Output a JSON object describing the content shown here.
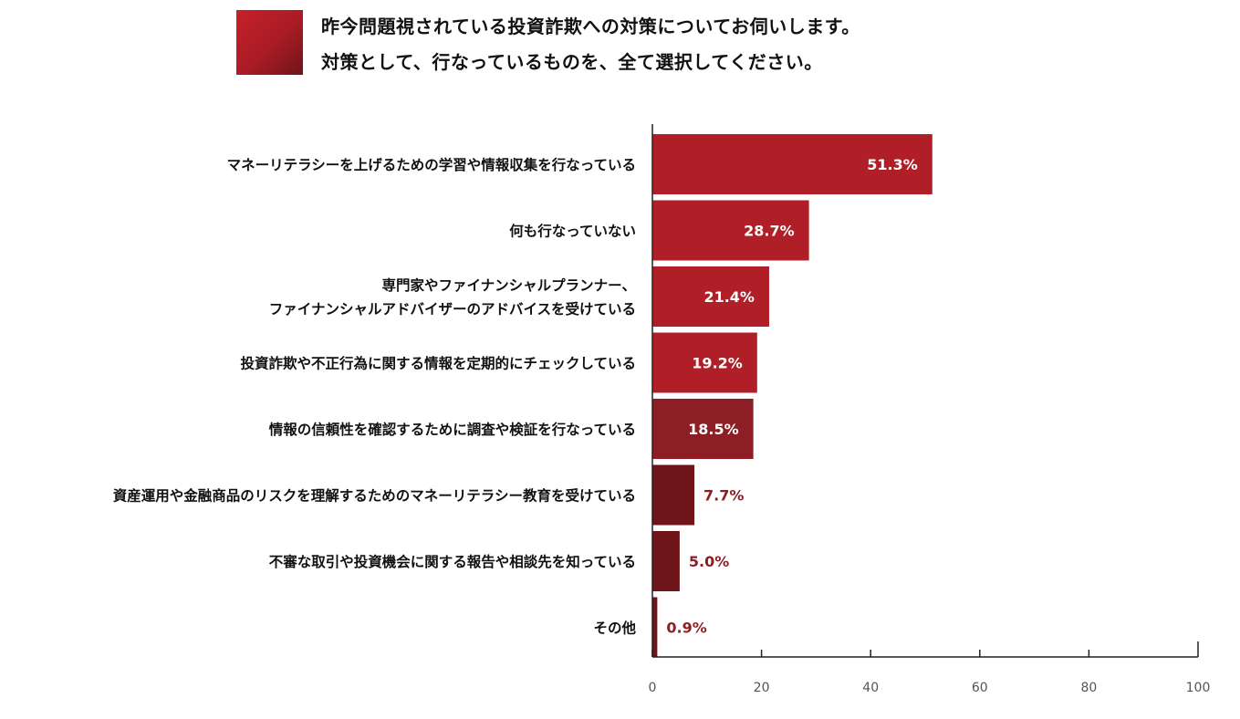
{
  "header": {
    "question_line1": "昨今問題視されている投資詐欺への対策についてお伺いします。",
    "question_line2": "対策として、行なっているものを、全て選択してください。",
    "swatch_color": "#b81e27"
  },
  "chart_data": {
    "type": "bar",
    "orientation": "horizontal",
    "categories": [
      [
        "マネーリテラシーを上げるための学習や情報収集を行なっている"
      ],
      [
        "何も行なっていない"
      ],
      [
        "専門家やファイナンシャルプランナー、",
        "ファイナンシャルアドバイザーのアドバイスを受けている"
      ],
      [
        "投資詐欺や不正行為に関する情報を定期的にチェックしている"
      ],
      [
        "情報の信頼性を確認するために調査や検証を行なっている"
      ],
      [
        "資産運用や金融商品のリスクを理解するためのマネーリテラシー教育を受けている"
      ],
      [
        "不審な取引や投資機会に関する報告や相談先を知っている"
      ],
      [
        "その他"
      ]
    ],
    "values": [
      51.3,
      28.7,
      21.4,
      19.2,
      18.5,
      7.7,
      5.0,
      0.9
    ],
    "value_labels": [
      "51.3%",
      "28.7%",
      "21.4%",
      "19.2%",
      "18.5%",
      "7.7%",
      "5.0%",
      "0.9%"
    ],
    "bar_colors": [
      "#b01f27",
      "#b01f27",
      "#b01f27",
      "#b01f27",
      "#8e1e25",
      "#6d1519",
      "#6d1519",
      "#6d1519"
    ],
    "xlim": [
      0,
      100
    ],
    "xticks": [
      "0",
      "20",
      "40",
      "60",
      "80",
      "100"
    ],
    "grid": false,
    "xlabel": "",
    "ylabel": ""
  }
}
